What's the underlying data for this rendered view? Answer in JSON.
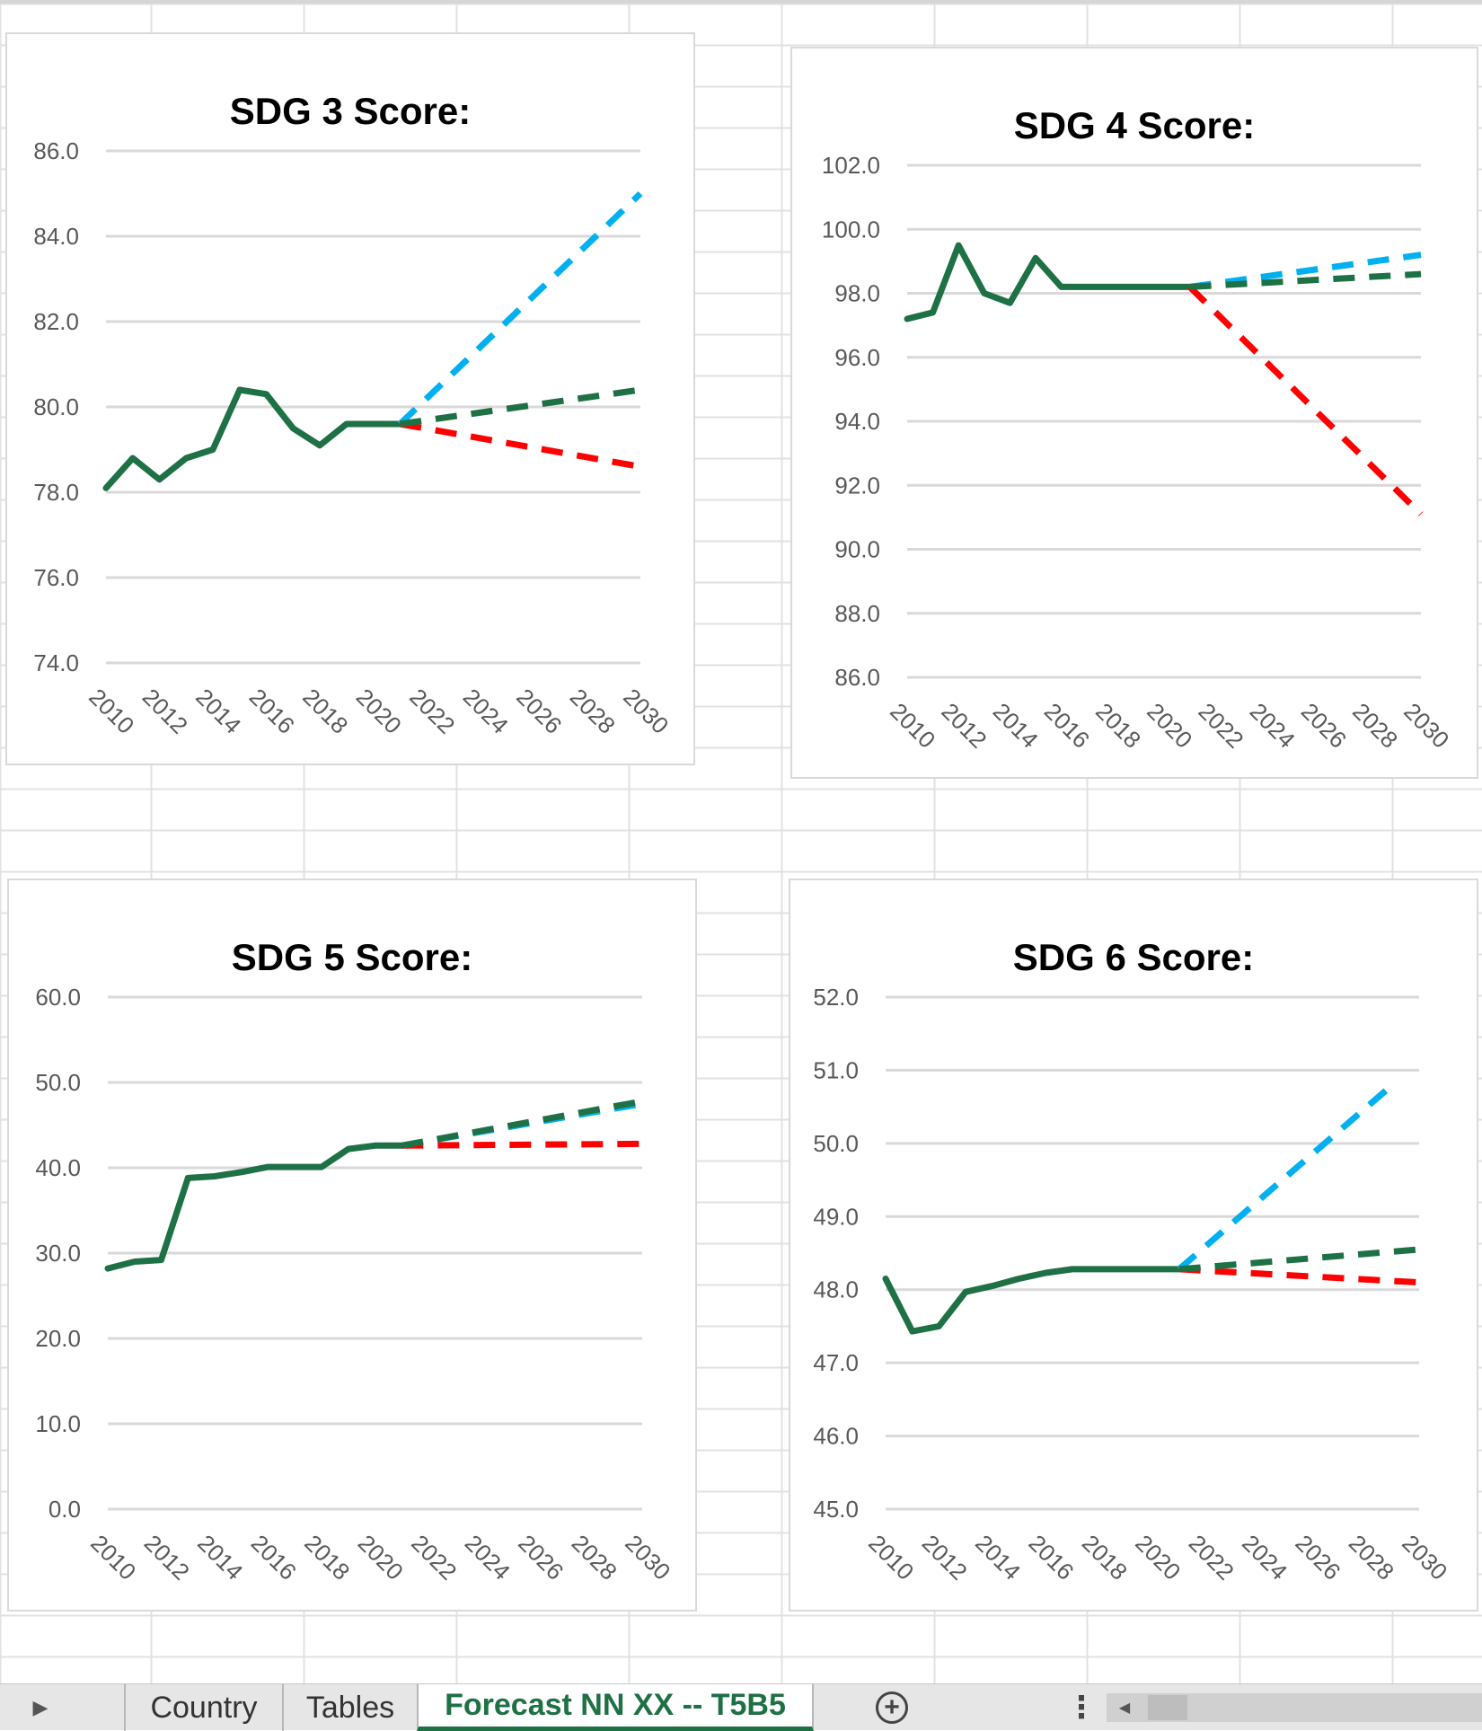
{
  "sheet_tabs": {
    "items": [
      {
        "label": "Country",
        "active": false
      },
      {
        "label": "Tables",
        "active": false
      },
      {
        "label": "Forecast NN XX -- T5B5",
        "active": true
      }
    ],
    "add_icon": "plus-circle-icon",
    "more_icon": "vertical-ellipsis-icon",
    "nav_icon": "triangle-right-icon"
  },
  "colors": {
    "historical": "#1e7145",
    "optimistic": "#00b0f0",
    "baseline": "#1e7145",
    "pessimistic": "#ff0000",
    "gridline": "#d9d9d9",
    "axis_text": "#595959"
  },
  "chart_data": [
    {
      "type": "line",
      "title": "SDG 3 Score:",
      "xlabel": "",
      "ylabel": "",
      "x_ticks": [
        "2010",
        "2012",
        "2014",
        "2016",
        "2018",
        "2020",
        "2022",
        "2024",
        "2026",
        "2028",
        "2030"
      ],
      "y_ticks": [
        "74.0",
        "76.0",
        "78.0",
        "80.0",
        "82.0",
        "84.0",
        "86.0"
      ],
      "xlim": [
        2010,
        2030
      ],
      "ylim": [
        74,
        86
      ],
      "grid": true,
      "legend": "none",
      "series": [
        {
          "role": "historical",
          "style": "solid",
          "x": [
            2010,
            2011,
            2012,
            2013,
            2014,
            2015,
            2016,
            2017,
            2018,
            2019,
            2020,
            2021
          ],
          "y": [
            78.1,
            78.8,
            78.3,
            78.8,
            79.0,
            80.4,
            80.3,
            79.5,
            79.1,
            79.6,
            79.6,
            79.6
          ]
        },
        {
          "role": "optimistic",
          "style": "dashed",
          "x": [
            2021,
            2030
          ],
          "y": [
            79.6,
            85.0
          ]
        },
        {
          "role": "baseline",
          "style": "dashed",
          "x": [
            2021,
            2030
          ],
          "y": [
            79.6,
            80.4
          ]
        },
        {
          "role": "pessimistic",
          "style": "dashed",
          "x": [
            2021,
            2030
          ],
          "y": [
            79.6,
            78.6
          ]
        }
      ]
    },
    {
      "type": "line",
      "title": "SDG 4 Score:",
      "xlabel": "",
      "ylabel": "",
      "x_ticks": [
        "2010",
        "2012",
        "2014",
        "2016",
        "2018",
        "2020",
        "2022",
        "2024",
        "2026",
        "2028",
        "2030"
      ],
      "y_ticks": [
        "86.0",
        "88.0",
        "90.0",
        "92.0",
        "94.0",
        "96.0",
        "98.0",
        "100.0",
        "102.0"
      ],
      "xlim": [
        2010,
        2030
      ],
      "ylim": [
        86,
        102
      ],
      "grid": true,
      "legend": "none",
      "series": [
        {
          "role": "historical",
          "style": "solid",
          "x": [
            2010,
            2011,
            2012,
            2013,
            2014,
            2015,
            2016,
            2017,
            2018,
            2019,
            2020,
            2021
          ],
          "y": [
            97.2,
            97.4,
            99.5,
            98.0,
            97.7,
            99.1,
            98.2,
            98.2,
            98.2,
            98.2,
            98.2,
            98.2
          ]
        },
        {
          "role": "optimistic",
          "style": "dashed",
          "x": [
            2021,
            2030
          ],
          "y": [
            98.2,
            99.2
          ]
        },
        {
          "role": "baseline",
          "style": "dashed",
          "x": [
            2021,
            2030
          ],
          "y": [
            98.2,
            98.6
          ]
        },
        {
          "role": "pessimistic",
          "style": "dashed",
          "x": [
            2021,
            2030
          ],
          "y": [
            98.2,
            91.1
          ]
        }
      ]
    },
    {
      "type": "line",
      "title": "SDG 5 Score:",
      "xlabel": "",
      "ylabel": "",
      "x_ticks": [
        "2010",
        "2012",
        "2014",
        "2016",
        "2018",
        "2020",
        "2022",
        "2024",
        "2026",
        "2028",
        "2030"
      ],
      "y_ticks": [
        "0.0",
        "10.0",
        "20.0",
        "30.0",
        "40.0",
        "50.0",
        "60.0"
      ],
      "xlim": [
        2010,
        2030
      ],
      "ylim": [
        0,
        60
      ],
      "grid": true,
      "legend": "none",
      "series": [
        {
          "role": "historical",
          "style": "solid",
          "x": [
            2010,
            2011,
            2012,
            2013,
            2014,
            2015,
            2016,
            2017,
            2018,
            2019,
            2020,
            2021
          ],
          "y": [
            28.2,
            29.0,
            29.2,
            38.8,
            39.0,
            39.5,
            40.1,
            40.1,
            40.1,
            42.2,
            42.6,
            42.6
          ]
        },
        {
          "role": "optimistic",
          "style": "dashed",
          "x": [
            2021,
            2030
          ],
          "y": [
            42.6,
            47.5
          ]
        },
        {
          "role": "baseline",
          "style": "dashed",
          "x": [
            2021,
            2030
          ],
          "y": [
            42.6,
            47.8
          ]
        },
        {
          "role": "pessimistic",
          "style": "dashed",
          "x": [
            2021,
            2030
          ],
          "y": [
            42.6,
            42.8
          ]
        }
      ]
    },
    {
      "type": "line",
      "title": "SDG 6 Score:",
      "xlabel": "",
      "ylabel": "",
      "x_ticks": [
        "2010",
        "2012",
        "2014",
        "2016",
        "2018",
        "2020",
        "2022",
        "2024",
        "2026",
        "2028",
        "2030"
      ],
      "y_ticks": [
        "45.0",
        "46.0",
        "47.0",
        "48.0",
        "49.0",
        "50.0",
        "51.0",
        "52.0"
      ],
      "xlim": [
        2010,
        2030
      ],
      "ylim": [
        45,
        52
      ],
      "grid": true,
      "legend": "none",
      "series": [
        {
          "role": "historical",
          "style": "solid",
          "x": [
            2010,
            2011,
            2012,
            2013,
            2014,
            2015,
            2016,
            2017,
            2018,
            2019,
            2020,
            2021
          ],
          "y": [
            48.15,
            47.43,
            47.5,
            47.97,
            48.05,
            48.15,
            48.23,
            48.28,
            48.28,
            48.28,
            48.28,
            48.28
          ]
        },
        {
          "role": "optimistic",
          "style": "dashed",
          "x": [
            2021,
            2029
          ],
          "y": [
            48.28,
            50.8
          ]
        },
        {
          "role": "baseline",
          "style": "dashed",
          "x": [
            2021,
            2030
          ],
          "y": [
            48.28,
            48.55
          ]
        },
        {
          "role": "pessimistic",
          "style": "dashed",
          "x": [
            2021,
            2030
          ],
          "y": [
            48.28,
            48.1
          ]
        }
      ]
    }
  ]
}
